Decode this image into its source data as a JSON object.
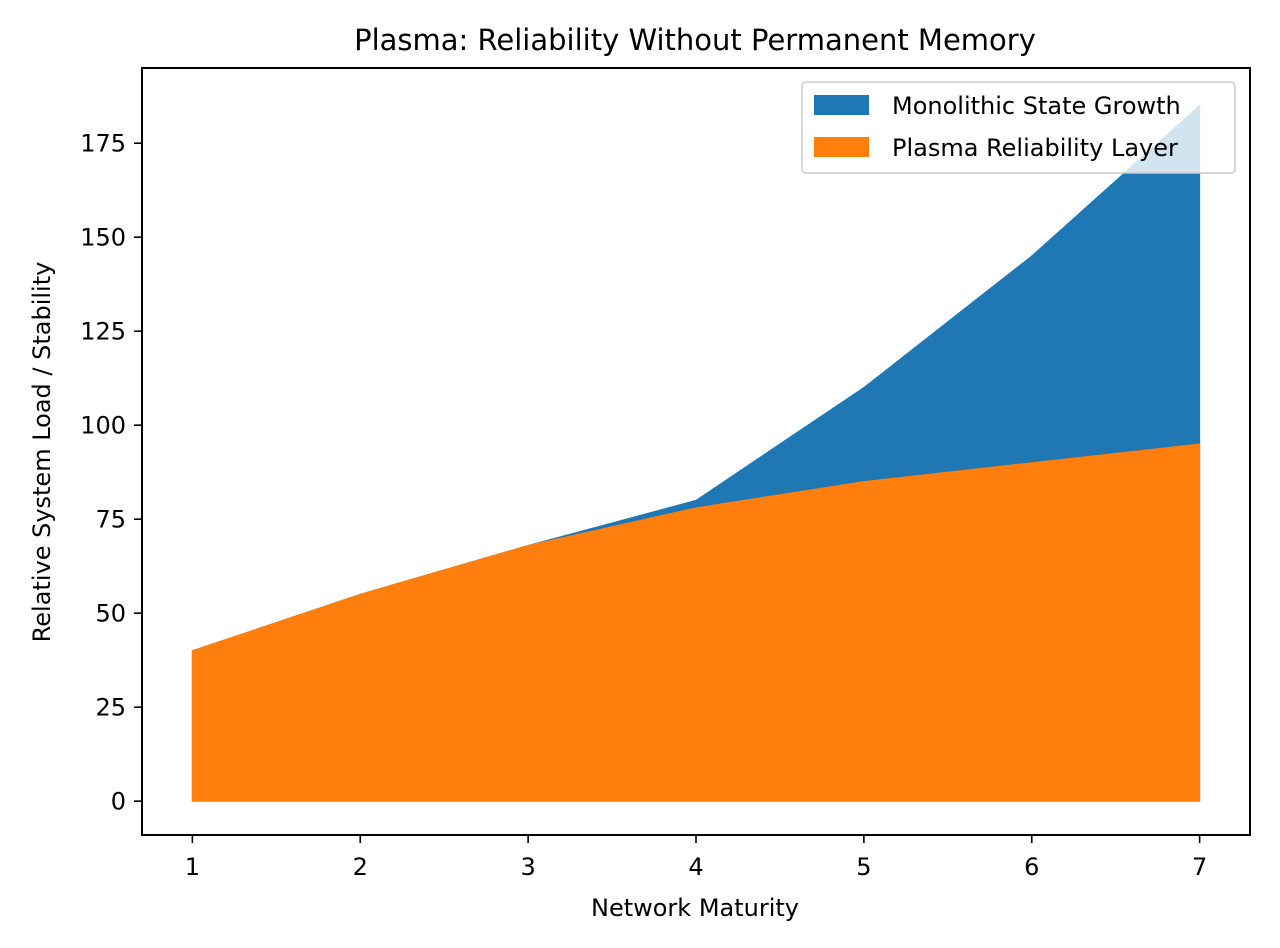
{
  "chart_data": {
    "type": "area",
    "title": "Plasma: Reliability Without Permanent Memory",
    "xlabel": "Network Maturity",
    "ylabel": "Relative System Load / Stability",
    "x": [
      1,
      2,
      3,
      4,
      5,
      6,
      7
    ],
    "xlim": [
      0.7,
      7.3
    ],
    "ylim": [
      -9,
      195
    ],
    "xticks": [
      1,
      2,
      3,
      4,
      5,
      6,
      7
    ],
    "yticks": [
      0,
      25,
      50,
      75,
      100,
      125,
      150,
      175
    ],
    "grid": false,
    "legend_position": "top-right",
    "series": [
      {
        "name": "Monolithic State Growth",
        "color": "#1f77b4",
        "values": [
          40,
          55,
          68,
          80,
          110,
          145,
          185
        ]
      },
      {
        "name": "Plasma Reliability Layer",
        "color": "#ff7f0e",
        "values": [
          40,
          55,
          68,
          78,
          85,
          90,
          95
        ]
      }
    ]
  }
}
